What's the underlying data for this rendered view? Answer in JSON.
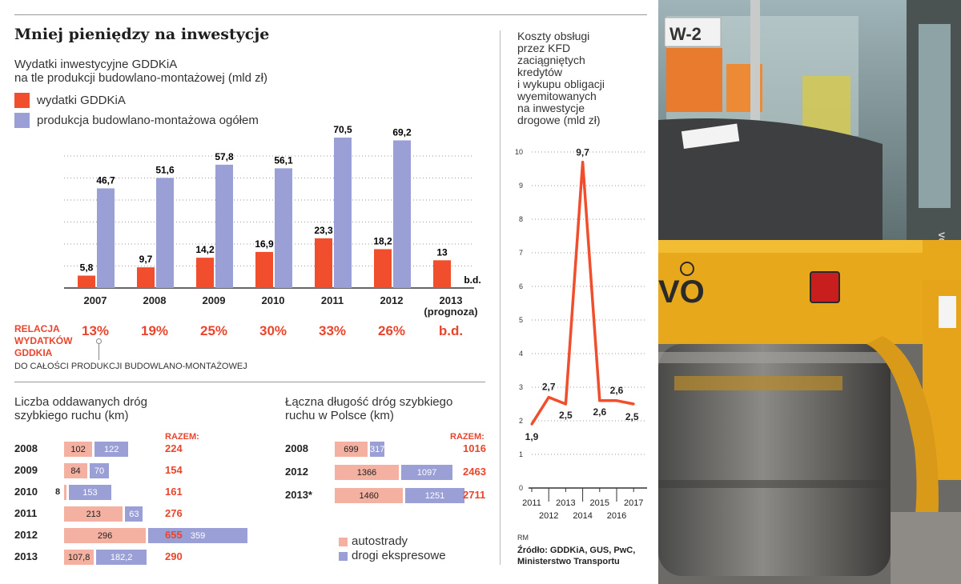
{
  "colors": {
    "orange": "#f04e2c",
    "purple": "#9a9fd6",
    "light_orange": "#f4b1a1",
    "red_text": "#e8452c"
  },
  "infographic": {
    "title": "Mniej pieniędzy na inwestycje",
    "main_chart": {
      "subtitle_line1": "Wydatki inwestycyjne GDDKiA",
      "subtitle_line2": "na tle produkcji budowlano-montażowej (mld zł)",
      "legend": [
        "wydatki GDDKiA",
        "produkcja budowlano-montażowa ogółem"
      ],
      "ratio_caption_lines": [
        "RELACJA",
        "WYDATKÓW",
        "GDDKIA"
      ],
      "ratio_caption_bottom": "DO CAŁOŚCI PRODUKCJI BUDOWLANO-MONTAŻOWEJ",
      "ratios": [
        "13%",
        "19%",
        "25%",
        "30%",
        "33%",
        "26%",
        "b.d."
      ]
    },
    "roads_chart": {
      "subtitle_line1": "Liczba oddawanych dróg",
      "subtitle_line2": "szybkiego ruchu (km)",
      "razem_label": "RAZEM:",
      "rows": [
        {
          "year": "2008",
          "a": "102",
          "b": "122",
          "total": "224"
        },
        {
          "year": "2009",
          "a": "84",
          "b": "70",
          "total": "154"
        },
        {
          "year": "2010",
          "a": "8",
          "b": "153",
          "total": "161"
        },
        {
          "year": "2011",
          "a": "213",
          "b": "63",
          "total": "276"
        },
        {
          "year": "2012",
          "a": "296",
          "b": "359",
          "total": "655"
        },
        {
          "year": "2013",
          "a": "107,8",
          "b": "182,2",
          "total": "290"
        }
      ]
    },
    "length_chart": {
      "subtitle_line1": "Łączna długość dróg szybkiego",
      "subtitle_line2": "ruchu w Polsce (km)",
      "razem_label": "RAZEM:",
      "rows": [
        {
          "year": "2008",
          "a": "699",
          "b": "317",
          "total": "1016"
        },
        {
          "year": "2012",
          "a": "1366",
          "b": "1097",
          "total": "2463"
        },
        {
          "year": "2013*",
          "a": "1460",
          "b": "1251",
          "total": "2711"
        }
      ],
      "legend": [
        "autostrady",
        "drogi ekspresowe"
      ]
    },
    "cost_chart": {
      "subtitle_lines": [
        "Koszty obsługi",
        "przez KFD",
        "zaciągniętych",
        "kredytów",
        "i wykupu obligacji",
        "wyemitowanych",
        "na inwestycje",
        "drogowe (mld zł)"
      ]
    },
    "source_rm": "RM",
    "source_line1": "Źródło: GDDKiA, GUS, PwC,",
    "source_line2": "Ministerstwo Transportu"
  },
  "photo": {
    "sign_text": "W-2",
    "brand_text": "VOLVO",
    "brand_partial": "VO",
    "cabin_brand": "VOLVO"
  },
  "chart_data": [
    {
      "type": "bar",
      "title": "Wydatki inwestycyjne GDDKiA na tle produkcji budowlano-montażowej (mld zł)",
      "categories": [
        "2007",
        "2008",
        "2009",
        "2010",
        "2011",
        "2012",
        "2013 (prognoza)"
      ],
      "category_lines": [
        [
          "2007"
        ],
        [
          "2008"
        ],
        [
          "2009"
        ],
        [
          "2010"
        ],
        [
          "2011"
        ],
        [
          "2012"
        ],
        [
          "2013",
          "(prognoza)"
        ]
      ],
      "series": [
        {
          "name": "wydatki GDDKiA",
          "values": [
            5.8,
            9.7,
            14.2,
            16.9,
            23.3,
            18.2,
            13
          ],
          "labels": [
            "5,8",
            "9,7",
            "14,2",
            "16,9",
            "23,3",
            "18,2",
            "13"
          ]
        },
        {
          "name": "produkcja budowlano-montażowa ogółem",
          "values": [
            46.7,
            51.6,
            57.8,
            56.1,
            70.5,
            69.2,
            null
          ],
          "labels": [
            "46,7",
            "51,6",
            "57,8",
            "56,1",
            "70,5",
            "69,2",
            "b.d."
          ]
        }
      ],
      "ylim": [
        0,
        72
      ],
      "grid": true,
      "legend": "top-left"
    },
    {
      "type": "bar",
      "orientation": "horizontal",
      "stacked": true,
      "title": "Liczba oddawanych dróg szybkiego ruchu (km)",
      "categories": [
        "2008",
        "2009",
        "2010",
        "2011",
        "2012",
        "2013"
      ],
      "series": [
        {
          "name": "autostrady",
          "values": [
            102,
            84,
            8,
            213,
            296,
            107.8
          ]
        },
        {
          "name": "drogi ekspresowe",
          "values": [
            122,
            70,
            153,
            63,
            359,
            182.2
          ]
        }
      ],
      "totals": [
        224,
        154,
        161,
        276,
        655,
        290
      ]
    },
    {
      "type": "bar",
      "orientation": "horizontal",
      "stacked": true,
      "title": "Łączna długość dróg szybkiego ruchu w Polsce (km)",
      "categories": [
        "2008",
        "2012",
        "2013*"
      ],
      "series": [
        {
          "name": "autostrady",
          "values": [
            699,
            1366,
            1460
          ]
        },
        {
          "name": "drogi ekspresowe",
          "values": [
            317,
            1097,
            1251
          ]
        }
      ],
      "totals": [
        1016,
        2463,
        2711
      ]
    },
    {
      "type": "line",
      "title": "Koszty obsługi przez KFD zaciągniętych kredytów i wykupu obligacji wyemitowanych na inwestycje drogowe (mld zł)",
      "x": [
        "2011",
        "2012",
        "2013",
        "2014",
        "2015",
        "2016",
        "2017"
      ],
      "series": [
        {
          "values": [
            1.9,
            2.7,
            2.5,
            9.7,
            2.6,
            2.6,
            2.5
          ],
          "labels": [
            "1,9",
            "2,7",
            "2,5",
            "9,7",
            "2,6",
            "2,6",
            "2,5"
          ]
        }
      ],
      "ylim": [
        0,
        10
      ],
      "yticks": [
        "0",
        "1",
        "2",
        "3",
        "4",
        "5",
        "6",
        "7",
        "8",
        "9",
        "10"
      ],
      "grid": true
    }
  ]
}
